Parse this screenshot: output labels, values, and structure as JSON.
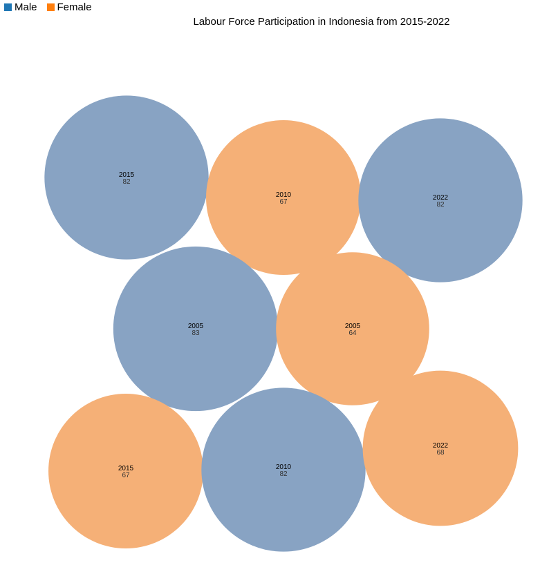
{
  "legend": [
    {
      "label": "Male",
      "color": "#1f77b4"
    },
    {
      "label": "Female",
      "color": "#ff7f0e"
    }
  ],
  "chart_data": {
    "type": "bubble",
    "title": "Labour Force Participation in Indonesia from 2015-2022",
    "series": [
      {
        "name": "Male",
        "color": "#88a3c3"
      },
      {
        "name": "Female",
        "color": "#f5b077"
      }
    ],
    "points": [
      {
        "year": "2015",
        "value": 82,
        "series": "Male"
      },
      {
        "year": "2010",
        "value": 67,
        "series": "Female"
      },
      {
        "year": "2022",
        "value": 82,
        "series": "Male"
      },
      {
        "year": "2005",
        "value": 83,
        "series": "Male"
      },
      {
        "year": "2005",
        "value": 64,
        "series": "Female"
      },
      {
        "year": "2015",
        "value": 67,
        "series": "Female"
      },
      {
        "year": "2010",
        "value": 82,
        "series": "Male"
      },
      {
        "year": "2022",
        "value": 68,
        "series": "Female"
      }
    ]
  }
}
